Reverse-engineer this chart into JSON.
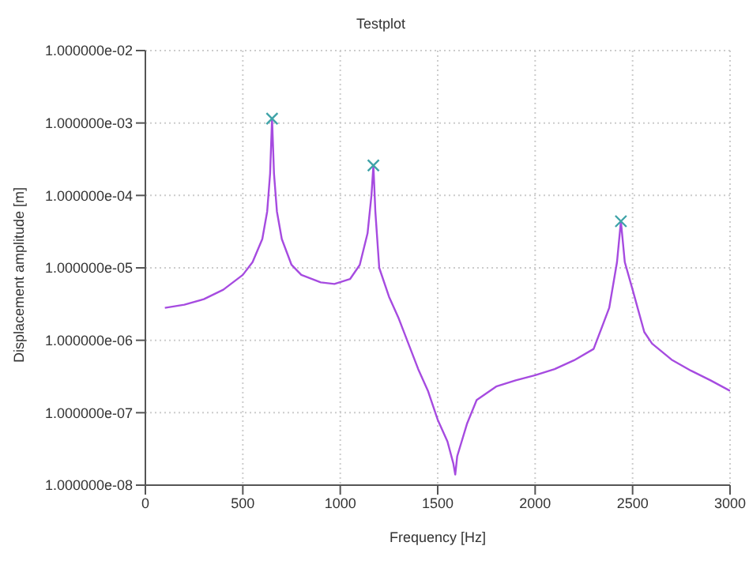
{
  "chart_data": {
    "type": "line",
    "title": "Testplot",
    "xlabel": "Frequency [Hz]",
    "ylabel": "Displacement amplitude [m]",
    "log": "y",
    "xlim": [
      0,
      3000
    ],
    "xticks": [
      0,
      500,
      1000,
      1500,
      2000,
      2500,
      3000
    ],
    "ylim": [
      1e-08,
      0.01
    ],
    "yticks": [
      {
        "value": 1e-08,
        "label": "1.000000e-08"
      },
      {
        "value": 1e-07,
        "label": "1.000000e-07"
      },
      {
        "value": 1e-06,
        "label": "1.000000e-06"
      },
      {
        "value": 1e-05,
        "label": "1.000000e-05"
      },
      {
        "value": 0.0001,
        "label": "1.000000e-04"
      },
      {
        "value": 0.001,
        "label": "1.000000e-03"
      },
      {
        "value": 0.01,
        "label": "1.000000e-02"
      }
    ],
    "grid": true,
    "line_style": "solid",
    "series": [
      {
        "color": "#a64be0",
        "marker": "none",
        "x": [
          100,
          200,
          300,
          400,
          500,
          550,
          600,
          625,
          640,
          650,
          660,
          675,
          700,
          750,
          800,
          900,
          970,
          1050,
          1100,
          1140,
          1160,
          1170,
          1180,
          1200,
          1250,
          1300,
          1400,
          1450,
          1500,
          1550,
          1580,
          1590,
          1600,
          1650,
          1700,
          1800,
          1900,
          2000,
          2100,
          2200,
          2300,
          2380,
          2420,
          2440,
          2460,
          2500,
          2560,
          2600,
          2700,
          2800,
          2900,
          3000
        ],
        "values": [
          2.8e-06,
          3.1e-06,
          3.7e-06,
          5e-06,
          8e-06,
          1.2e-05,
          2.5e-05,
          6e-05,
          0.0002,
          0.00115,
          0.0002,
          6e-05,
          2.5e-05,
          1.1e-05,
          8e-06,
          6.3e-06,
          6e-06,
          7e-06,
          1.1e-05,
          3e-05,
          0.0001,
          0.00026,
          6e-05,
          1e-05,
          4e-06,
          2e-06,
          4e-07,
          2e-07,
          8e-08,
          4e-08,
          2e-08,
          1.4e-08,
          2.5e-08,
          7e-08,
          1.5e-07,
          2.3e-07,
          2.8e-07,
          3.3e-07,
          4e-07,
          5.3e-07,
          7.6e-07,
          2.8e-06,
          1.2e-05,
          4.4e-05,
          1.2e-05,
          5e-06,
          1.3e-06,
          9e-07,
          5.4e-07,
          3.8e-07,
          2.8e-07,
          2e-07
        ]
      },
      {
        "type": "scatter",
        "color": "#3fa3a8",
        "marker": "cross",
        "x": [
          650,
          1170,
          2440
        ],
        "values": [
          0.00115,
          0.00026,
          4.4e-05
        ]
      }
    ]
  }
}
